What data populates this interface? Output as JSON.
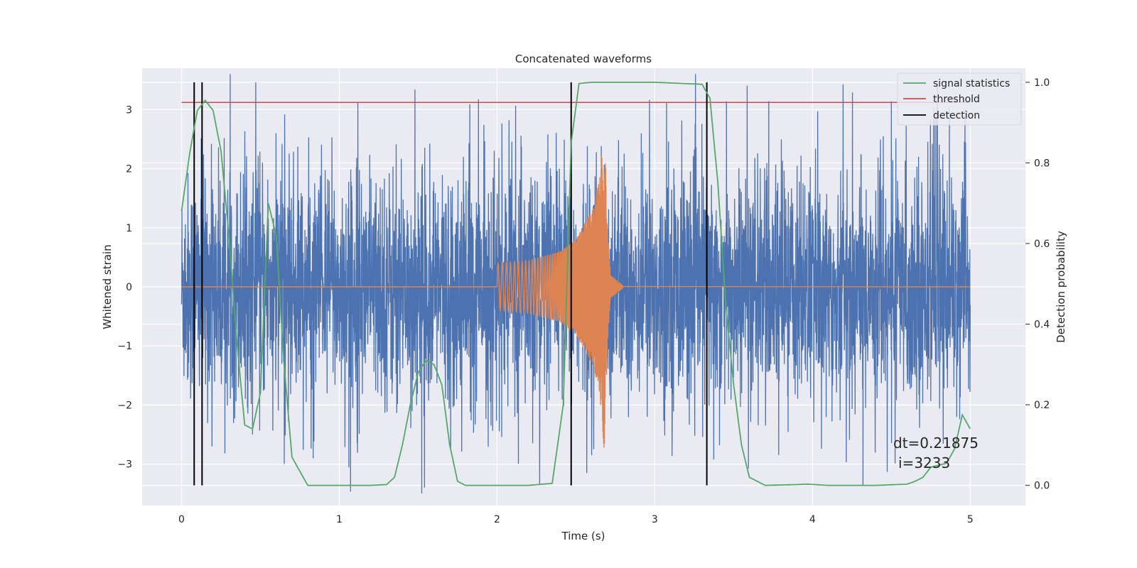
{
  "chart_data": {
    "type": "line",
    "title": "Concatenated waveforms",
    "xlabel": "Time (s)",
    "ylabel": "Whitened strain",
    "y2label": "Detection probability",
    "xlim": [
      -0.25,
      5.35
    ],
    "ylim": [
      -3.7,
      3.7
    ],
    "y2lim": [
      -0.05,
      1.035
    ],
    "xticks": [
      0,
      1,
      2,
      3,
      4,
      5
    ],
    "yticks": [
      -3,
      -2,
      -1,
      0,
      1,
      2,
      3
    ],
    "y2ticks": [
      0.0,
      0.2,
      0.4,
      0.6,
      0.8,
      1.0
    ],
    "xtick_labels": [
      "0",
      "1",
      "2",
      "3",
      "4",
      "5"
    ],
    "ytick_labels": [
      "−3",
      "−2",
      "−1",
      "0",
      "1",
      "2",
      "3"
    ],
    "y2tick_labels": [
      "0.0",
      "0.2",
      "0.4",
      "0.6",
      "0.8",
      "1.0"
    ],
    "grid": true,
    "legend_position": "top-right",
    "series": [
      {
        "name": "",
        "role": "whitened strain noise",
        "axis": "left",
        "color": "#4c72b0",
        "x_range": [
          0,
          5
        ],
        "typical_envelope": [
          -1.2,
          1.2
        ],
        "peak_range": [
          -3.7,
          3.6
        ]
      },
      {
        "name": "",
        "role": "injected chirp waveform",
        "axis": "left",
        "color": "#dd8452",
        "x": [
          0,
          2.0,
          2.2,
          2.4,
          2.5,
          2.6,
          2.65,
          2.68,
          2.7,
          2.72,
          2.8,
          5.0
        ],
        "amplitude": [
          0,
          0.4,
          0.45,
          0.6,
          0.8,
          1.3,
          1.8,
          2.8,
          1.0,
          0.2,
          0.02,
          0
        ]
      },
      {
        "name": "signal statistics",
        "axis": "right",
        "color": "#55a868",
        "x": [
          0.0,
          0.05,
          0.1,
          0.15,
          0.2,
          0.25,
          0.3,
          0.35,
          0.4,
          0.45,
          0.5,
          0.55,
          0.6,
          0.65,
          0.7,
          0.8,
          1.0,
          1.2,
          1.3,
          1.35,
          1.4,
          1.45,
          1.5,
          1.55,
          1.6,
          1.65,
          1.7,
          1.75,
          1.8,
          2.0,
          2.2,
          2.35,
          2.42,
          2.47,
          2.52,
          2.6,
          3.0,
          3.3,
          3.35,
          3.4,
          3.45,
          3.5,
          3.55,
          3.6,
          3.7,
          3.9,
          3.97,
          4.1,
          4.4,
          4.6,
          4.65,
          4.7,
          4.75,
          4.8,
          4.85,
          4.9,
          4.95,
          5.0
        ],
        "values": [
          0.68,
          0.82,
          0.93,
          0.955,
          0.93,
          0.83,
          0.62,
          0.36,
          0.15,
          0.14,
          0.23,
          0.7,
          0.62,
          0.3,
          0.07,
          0.0,
          0.0,
          0.0,
          0.002,
          0.02,
          0.1,
          0.2,
          0.28,
          0.31,
          0.3,
          0.25,
          0.1,
          0.01,
          0.0,
          0.0,
          0.0,
          0.005,
          0.2,
          0.85,
          0.997,
          1.0,
          1.0,
          0.995,
          0.96,
          0.75,
          0.45,
          0.25,
          0.1,
          0.02,
          0.0,
          0.002,
          0.003,
          0.0,
          0.0,
          0.003,
          0.01,
          0.02,
          0.045,
          0.05,
          0.055,
          0.09,
          0.175,
          0.14
        ]
      },
      {
        "name": "threshold",
        "axis": "right",
        "color": "#c44e52",
        "x": [
          0,
          5
        ],
        "values": [
          0.95,
          0.95
        ]
      },
      {
        "name": "detection",
        "axis": "right",
        "color": "#000000",
        "type": "vertical lines",
        "x": [
          0.08,
          0.13,
          2.47,
          3.33
        ],
        "span": [
          0,
          1
        ]
      }
    ],
    "legend": [
      "signal statistics",
      "threshold",
      "detection"
    ],
    "annotations": [
      "dt=0.21875",
      "i=3233"
    ]
  }
}
